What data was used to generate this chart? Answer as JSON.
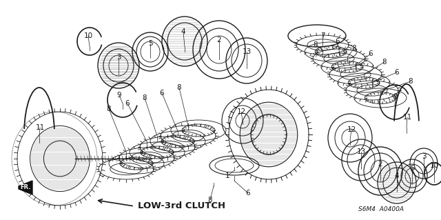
{
  "bg_color": "#ffffff",
  "line_color": "#1a1a1a",
  "diagram_label": "LOW-3rd CLUTCH",
  "diagram_code": "S6M4  A0400A",
  "fr_label": "FR.",
  "figsize": [
    6.4,
    3.19
  ],
  "dpi": 100,
  "label_fontsize": 7.5,
  "title_fontsize": 9.5,
  "code_fontsize": 6.5
}
